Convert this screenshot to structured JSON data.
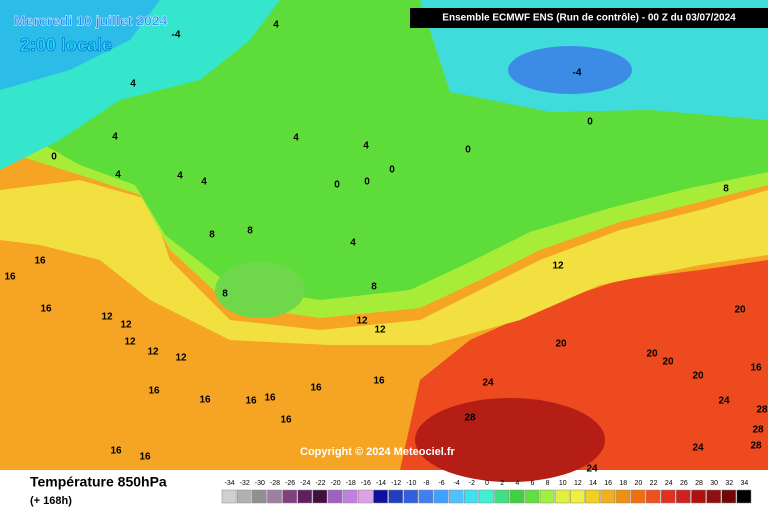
{
  "header": {
    "date": "Mercredi 10 juillet 2024",
    "time": "2:00 locale",
    "model": "Ensemble ECMWF ENS  (Run de contrôle)  -  00 Z du 03/07/2024"
  },
  "footer": {
    "title": "Température 850hPa",
    "lead": "(+ 168h)",
    "copyright": "Copyright © 2024 Meteociel.fr"
  },
  "legend": {
    "ticks": [
      -34,
      -32,
      -30,
      -28,
      -26,
      -24,
      -22,
      -20,
      -18,
      -16,
      -14,
      -12,
      -10,
      -8,
      -6,
      -4,
      -2,
      0,
      2,
      4,
      6,
      8,
      10,
      12,
      14,
      16,
      18,
      20,
      22,
      24,
      26,
      28,
      30,
      32,
      34
    ],
    "colors": [
      "#d0d0d0",
      "#b0b0b0",
      "#909090",
      "#a080a0",
      "#804080",
      "#602060",
      "#401040",
      "#a060c0",
      "#c080e0",
      "#e0a0e8",
      "#1010a0",
      "#2040c0",
      "#3060e0",
      "#4080f0",
      "#40a0ff",
      "#50c0ff",
      "#40e0f0",
      "#40f0d0",
      "#40e080",
      "#40d040",
      "#60e040",
      "#a0f040",
      "#e0f040",
      "#f0f040",
      "#f0d020",
      "#f0b020",
      "#f09010",
      "#f07010",
      "#f05020",
      "#e03020",
      "#d02020",
      "#b01010",
      "#901010",
      "#700808",
      "#000000"
    ]
  },
  "contour_labels": [
    -4,
    4,
    4,
    -4,
    0,
    4,
    4,
    4,
    0,
    0,
    4,
    4,
    4,
    0,
    0,
    0,
    8,
    8,
    8,
    4,
    16,
    16,
    12,
    8,
    8,
    16,
    12,
    12,
    12,
    12,
    12,
    12,
    12,
    20,
    20,
    20,
    20,
    16,
    20,
    16,
    24,
    16,
    16,
    16,
    16,
    16,
    16,
    28,
    24,
    28,
    28,
    24,
    28,
    16,
    16,
    24
  ]
}
